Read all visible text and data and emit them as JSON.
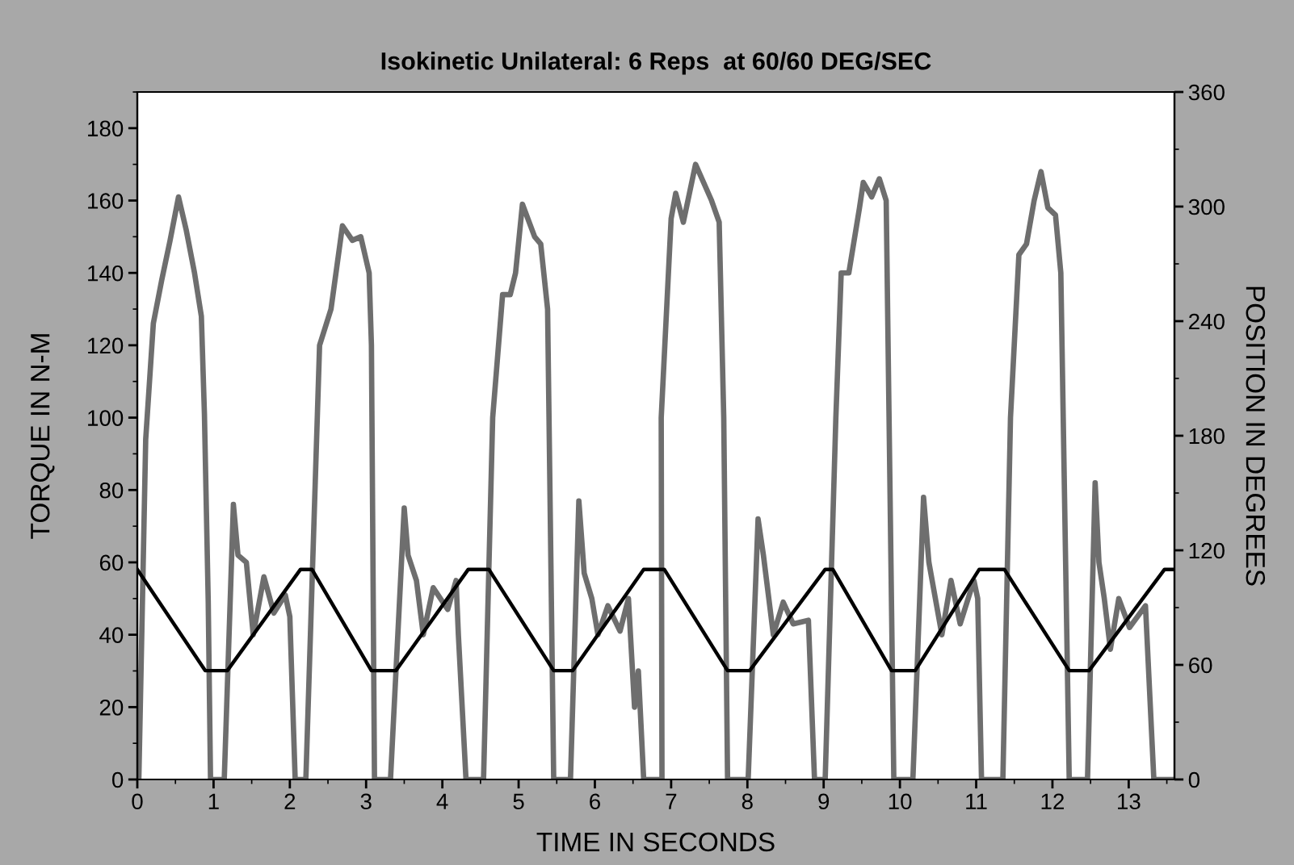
{
  "chart_data": {
    "type": "line",
    "title": "Isokinetic Unilateral: 6 Reps  at 60/60 DEG/SEC",
    "xlabel": "TIME IN SECONDS",
    "ylabel": "TORQUE IN N-M",
    "y2label": "POSITION IN DEGREES",
    "xlim": [
      0,
      13.6
    ],
    "xticks": [
      0,
      1,
      2,
      3,
      4,
      5,
      6,
      7,
      8,
      9,
      10,
      11,
      12,
      13
    ],
    "ylim": [
      0,
      190
    ],
    "yticks": [
      0,
      20,
      40,
      60,
      80,
      100,
      120,
      140,
      160,
      180
    ],
    "y2lim": [
      0,
      360
    ],
    "y2ticks": [
      0,
      60,
      120,
      180,
      240,
      300,
      360
    ],
    "grid": false,
    "legend": false,
    "marker": "none",
    "line_style": "solid",
    "series": [
      {
        "color": "#6e6e6e",
        "x": [
          0,
          0.02,
          0.11,
          0.21,
          0.32,
          0.43,
          0.54,
          0.64,
          0.75,
          0.84,
          0.88,
          0.93,
          0.96,
          1.14,
          1.26,
          1.32,
          1.43,
          1.52,
          1.66,
          1.79,
          1.94,
          2.0,
          2.07,
          2.21,
          2.39,
          2.54,
          2.69,
          2.82,
          2.93,
          3.04,
          3.07,
          3.11,
          3.32,
          3.5,
          3.55,
          3.66,
          3.75,
          3.88,
          4.07,
          4.18,
          4.21,
          4.31,
          4.54,
          4.66,
          4.79,
          4.89,
          4.96,
          5.05,
          5.21,
          5.29,
          5.38,
          5.46,
          5.68,
          5.79,
          5.86,
          5.96,
          6.04,
          6.17,
          6.33,
          6.44,
          6.52,
          6.57,
          6.64,
          6.88,
          6.87,
          7.0,
          7.06,
          7.16,
          7.32,
          7.53,
          7.63,
          7.69,
          7.74,
          8.01,
          8.14,
          8.21,
          8.34,
          8.47,
          8.6,
          8.8,
          8.88,
          9.02,
          9.16,
          9.23,
          9.33,
          9.47,
          9.52,
          9.63,
          9.73,
          9.82,
          9.92,
          10.17,
          10.31,
          10.38,
          10.55,
          10.67,
          10.79,
          10.97,
          11.02,
          11.07,
          11.35,
          11.45,
          11.56,
          11.66,
          11.76,
          11.85,
          11.94,
          12.04,
          12.11,
          12.22,
          12.46,
          12.56,
          12.61,
          12.68,
          12.76,
          12.87,
          13.01,
          13.22,
          13.33,
          13.6
        ],
        "values": [
          0,
          0,
          94,
          126,
          138,
          149,
          161,
          152,
          140,
          128,
          101,
          49,
          0,
          0,
          76,
          62,
          60,
          40,
          56,
          46,
          51,
          45,
          0,
          0,
          120,
          130,
          153,
          149,
          150,
          140,
          120,
          0,
          0,
          75,
          62,
          55,
          40,
          53,
          47,
          55,
          40,
          0,
          0,
          100,
          134,
          134,
          140,
          159,
          150,
          148,
          130,
          0,
          0,
          77,
          57,
          50,
          40,
          48,
          41,
          50,
          20,
          30,
          0,
          0,
          100,
          155,
          162,
          154,
          170,
          160,
          154,
          100,
          0,
          0,
          72,
          62,
          40,
          49,
          43,
          44,
          0,
          0,
          100,
          140,
          140,
          158,
          165,
          161,
          166,
          160,
          0,
          0,
          78,
          60,
          40,
          55,
          43,
          55,
          50,
          0,
          0,
          100,
          145,
          148,
          160,
          168,
          158,
          156,
          140,
          0,
          0,
          82,
          60,
          50,
          36,
          50,
          42,
          48,
          0,
          0
        ]
      },
      {
        "color": "#000000",
        "axis": "y2",
        "x": [
          0,
          0.89,
          1.18,
          2.14,
          2.29,
          3.07,
          3.39,
          4.34,
          4.61,
          5.46,
          5.71,
          6.64,
          6.91,
          7.74,
          8.03,
          9.02,
          9.12,
          9.89,
          10.2,
          11.04,
          11.37,
          12.22,
          12.48,
          13.47,
          13.6
        ],
        "values": [
          110,
          57,
          57,
          110,
          110,
          57,
          57,
          110,
          110,
          57,
          57,
          110,
          110,
          57,
          57,
          110,
          110,
          57,
          57,
          110,
          110,
          57,
          57,
          110,
          110
        ]
      }
    ]
  }
}
